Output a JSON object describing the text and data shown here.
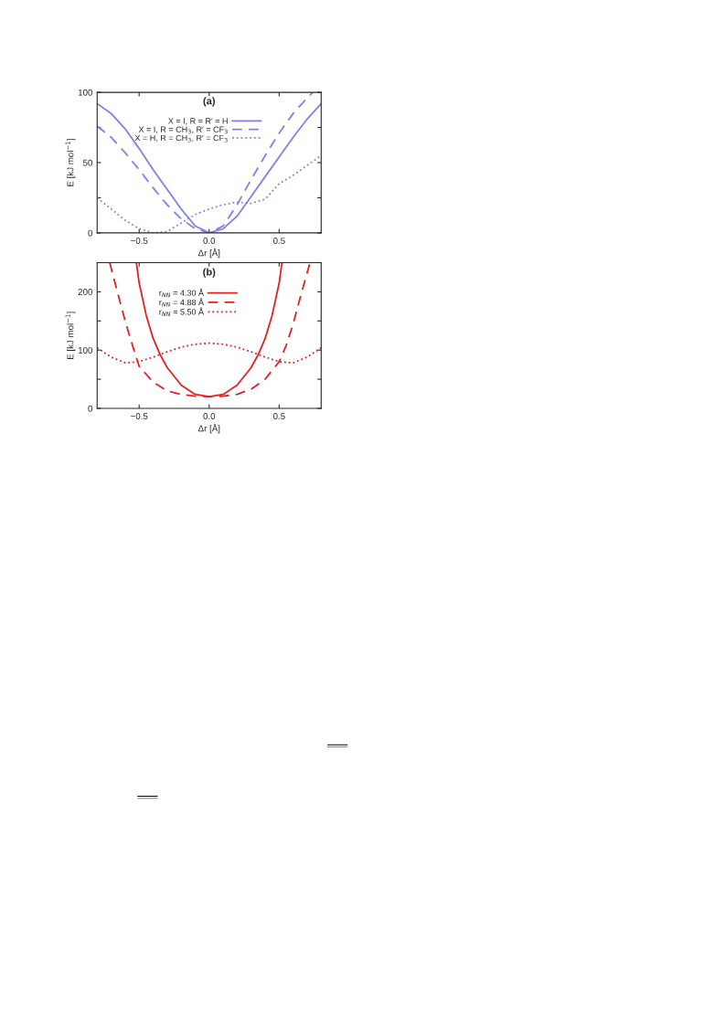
{
  "chart_data": [
    {
      "type": "line",
      "title": "(a)",
      "xlabel": "Δr [Å]",
      "ylabel": "E [kJ mol$^{−1}$]",
      "legend": "top",
      "grid": false,
      "xlim": [
        -0.8,
        0.8
      ],
      "xticks": [
        {
          "value": -0.5,
          "label": "−0.5"
        },
        {
          "value": 0,
          "label": "0.0"
        },
        {
          "value": 0.5,
          "label": "0.5"
        }
      ],
      "ylim": [
        0,
        100
      ],
      "yticks": [
        0,
        {
          "value": 25,
          "label": null
        },
        50,
        {
          "value": 75,
          "label": null
        },
        100
      ],
      "series": [
        {
          "name": "X = I, R = R′ = H",
          "color": "#8080e6",
          "line_style": "solid",
          "x": [
            -0.8,
            -0.7,
            -0.6,
            -0.5,
            -0.4,
            -0.3,
            -0.2,
            -0.1,
            0,
            0.1,
            0.2,
            0.3,
            0.4,
            0.5,
            0.6,
            0.7,
            0.8
          ],
          "values": [
            92,
            85,
            74,
            60,
            45,
            31,
            17,
            5,
            0,
            3,
            12,
            26,
            40,
            54,
            68,
            81,
            92
          ]
        },
        {
          "name": "X = I, R = CH$_{3}$, R′ = CF$_{3}$",
          "color": "#8080e6",
          "line_style": "dashed",
          "x": [
            -0.8,
            -0.7,
            -0.6,
            -0.5,
            -0.4,
            -0.3,
            -0.2,
            -0.1,
            0,
            0.1,
            0.2,
            0.3,
            0.4,
            0.5,
            0.6,
            0.7,
            0.74
          ],
          "values": [
            76,
            68,
            57,
            45,
            32,
            20,
            10,
            3,
            0,
            5,
            20,
            38,
            55,
            71,
            85,
            96,
            100
          ]
        },
        {
          "name": "X = H, R = CH$_{3}$, R′ = CF$_{3}$",
          "color": "#8080e6",
          "line_style": "dotted",
          "x": [
            -0.8,
            -0.7,
            -0.6,
            -0.5,
            -0.4,
            -0.3,
            -0.2,
            -0.1,
            0,
            0.1,
            0.2,
            0.3,
            0.4,
            0.5,
            0.6,
            0.7,
            0.8
          ],
          "values": [
            25,
            17,
            9,
            3,
            0,
            1,
            7,
            13,
            17,
            20,
            22,
            21,
            24,
            35,
            41,
            48,
            55
          ]
        }
      ]
    },
    {
      "type": "line",
      "title": "(b)",
      "xlabel": "Δr [Å]",
      "ylabel": "E [kJ mol$^{−1}$]",
      "legend": "top",
      "grid": false,
      "xlim": [
        -0.8,
        0.8
      ],
      "xticks": [
        {
          "value": -0.5,
          "label": "−0.5"
        },
        {
          "value": 0,
          "label": "0.0"
        },
        {
          "value": 0.5,
          "label": "0.5"
        }
      ],
      "ylim": [
        0,
        250
      ],
      "yticks": [
        0,
        {
          "value": 50,
          "label": null
        },
        100,
        {
          "value": 150,
          "label": null
        },
        200,
        {
          "value": 250,
          "label": null
        }
      ],
      "series": [
        {
          "name": "r$_{NN}$ = 4.30 Å",
          "color": "#e62020",
          "line_style": "solid",
          "x": [
            -0.52,
            -0.5,
            -0.45,
            -0.4,
            -0.35,
            -0.3,
            -0.2,
            -0.1,
            0,
            0.1,
            0.2,
            0.3,
            0.35,
            0.4,
            0.45,
            0.5,
            0.52
          ],
          "values": [
            250,
            215,
            160,
            120,
            92,
            70,
            40,
            24,
            20,
            24,
            40,
            70,
            92,
            120,
            160,
            215,
            250
          ]
        },
        {
          "name": "r$_{NN}$ = 4.88 Å",
          "color": "#e62020",
          "line_style": "dashed",
          "x": [
            -0.71,
            -0.65,
            -0.6,
            -0.55,
            -0.5,
            -0.4,
            -0.3,
            -0.2,
            -0.1,
            0,
            0.1,
            0.2,
            0.3,
            0.4,
            0.5,
            0.55,
            0.6,
            0.65,
            0.72
          ],
          "values": [
            250,
            195,
            150,
            110,
            72,
            45,
            30,
            24,
            21,
            20,
            21,
            24,
            33,
            50,
            80,
            108,
            145,
            190,
            250
          ]
        },
        {
          "name": "r$_{NN}$ = 5.50 Å",
          "color": "#e62020",
          "line_style": "dotted",
          "x": [
            -0.8,
            -0.7,
            -0.6,
            -0.5,
            -0.4,
            -0.3,
            -0.2,
            -0.1,
            0,
            0.1,
            0.2,
            0.3,
            0.4,
            0.5,
            0.6,
            0.7,
            0.8
          ],
          "values": [
            104,
            88,
            78,
            80,
            88,
            97,
            105,
            110,
            112,
            110,
            105,
            97,
            88,
            80,
            78,
            88,
            104
          ]
        }
      ]
    }
  ]
}
